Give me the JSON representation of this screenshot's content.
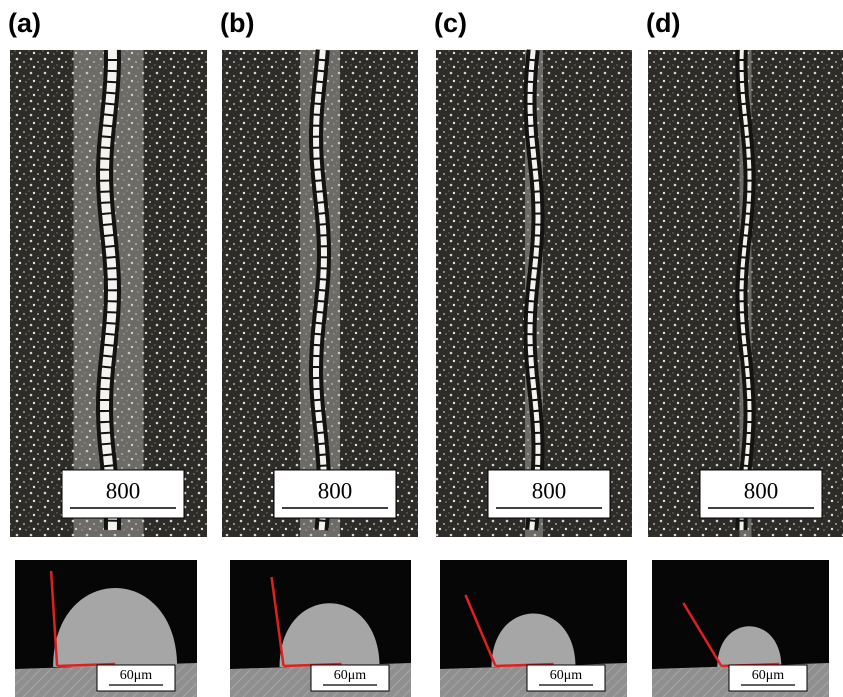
{
  "panels": [
    {
      "label": "(a)",
      "top_scale": "800",
      "bottom_scale": "60μm"
    },
    {
      "label": "(b)",
      "top_scale": "800",
      "bottom_scale": "60μm"
    },
    {
      "label": "(c)",
      "top_scale": "800",
      "bottom_scale": "60μm"
    },
    {
      "label": "(d)",
      "top_scale": "800",
      "bottom_scale": "60μm"
    }
  ]
}
